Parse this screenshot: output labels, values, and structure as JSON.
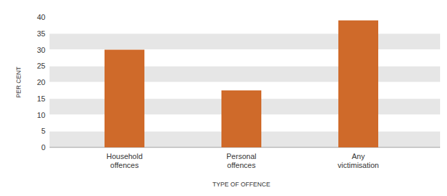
{
  "chart_data": {
    "type": "bar",
    "categories": [
      "Household offences",
      "Personal offences",
      "Any victimisation"
    ],
    "values": [
      30,
      17.5,
      39
    ],
    "color": "#cf6a2a",
    "ylim": [
      0,
      40
    ],
    "yticks": [
      0,
      5,
      10,
      15,
      20,
      25,
      30,
      35,
      40
    ],
    "grid": true,
    "x_label": "TYPE OF OFFENCE",
    "y_label": "PER CENT"
  }
}
